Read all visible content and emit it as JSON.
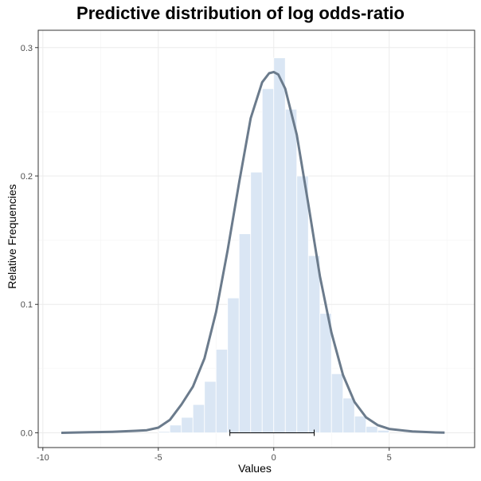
{
  "chart_data": {
    "type": "bar",
    "title": "Predictive distribution of log odds-ratio",
    "xlabel": "Values",
    "ylabel": "Relative Frequencies",
    "xlim": [
      -10.2,
      8.7
    ],
    "ylim": [
      -0.0115,
      0.3135
    ],
    "x_ticks": [
      -10,
      -5,
      0,
      5
    ],
    "x_tick_labels": [
      "-10",
      "-5",
      "0",
      "5"
    ],
    "y_ticks": [
      0.0,
      0.1,
      0.2,
      0.3
    ],
    "y_tick_labels": [
      "0.0",
      "0.1",
      "0.2",
      "0.3"
    ],
    "grid": true,
    "bar_width": 0.5,
    "bar_color": "#dae6f4",
    "curve_color": "#6b7b8c",
    "bars": [
      {
        "x": -4.75,
        "value": 0.001
      },
      {
        "x": -4.25,
        "value": 0.006
      },
      {
        "x": -3.75,
        "value": 0.012
      },
      {
        "x": -3.25,
        "value": 0.022
      },
      {
        "x": -2.75,
        "value": 0.04
      },
      {
        "x": -2.25,
        "value": 0.065
      },
      {
        "x": -1.75,
        "value": 0.105
      },
      {
        "x": -1.25,
        "value": 0.155
      },
      {
        "x": -0.75,
        "value": 0.203
      },
      {
        "x": -0.25,
        "value": 0.268
      },
      {
        "x": 0.25,
        "value": 0.292
      },
      {
        "x": 0.75,
        "value": 0.252
      },
      {
        "x": 1.25,
        "value": 0.2
      },
      {
        "x": 1.75,
        "value": 0.138
      },
      {
        "x": 2.25,
        "value": 0.093
      },
      {
        "x": 2.75,
        "value": 0.046
      },
      {
        "x": 3.25,
        "value": 0.027
      },
      {
        "x": 3.75,
        "value": 0.013
      },
      {
        "x": 4.25,
        "value": 0.005
      },
      {
        "x": 4.75,
        "value": 0.002
      }
    ],
    "density_curve": {
      "x": [
        -9.2,
        -8,
        -7,
        -6,
        -5.5,
        -5,
        -4.5,
        -4,
        -3.5,
        -3,
        -2.5,
        -2,
        -1.5,
        -1,
        -0.5,
        -0.2,
        0,
        0.2,
        0.5,
        1,
        1.5,
        2,
        2.5,
        3,
        3.5,
        4,
        4.5,
        5,
        6,
        7,
        7.4
      ],
      "y": [
        0.0,
        0.0004,
        0.0008,
        0.0015,
        0.002,
        0.004,
        0.01,
        0.022,
        0.036,
        0.058,
        0.094,
        0.142,
        0.195,
        0.245,
        0.273,
        0.28,
        0.281,
        0.279,
        0.268,
        0.232,
        0.178,
        0.122,
        0.078,
        0.045,
        0.024,
        0.012,
        0.006,
        0.003,
        0.001,
        0.0003,
        0.0001
      ]
    },
    "interval": {
      "low": -1.9,
      "high": 1.75,
      "y": 0.0
    }
  }
}
